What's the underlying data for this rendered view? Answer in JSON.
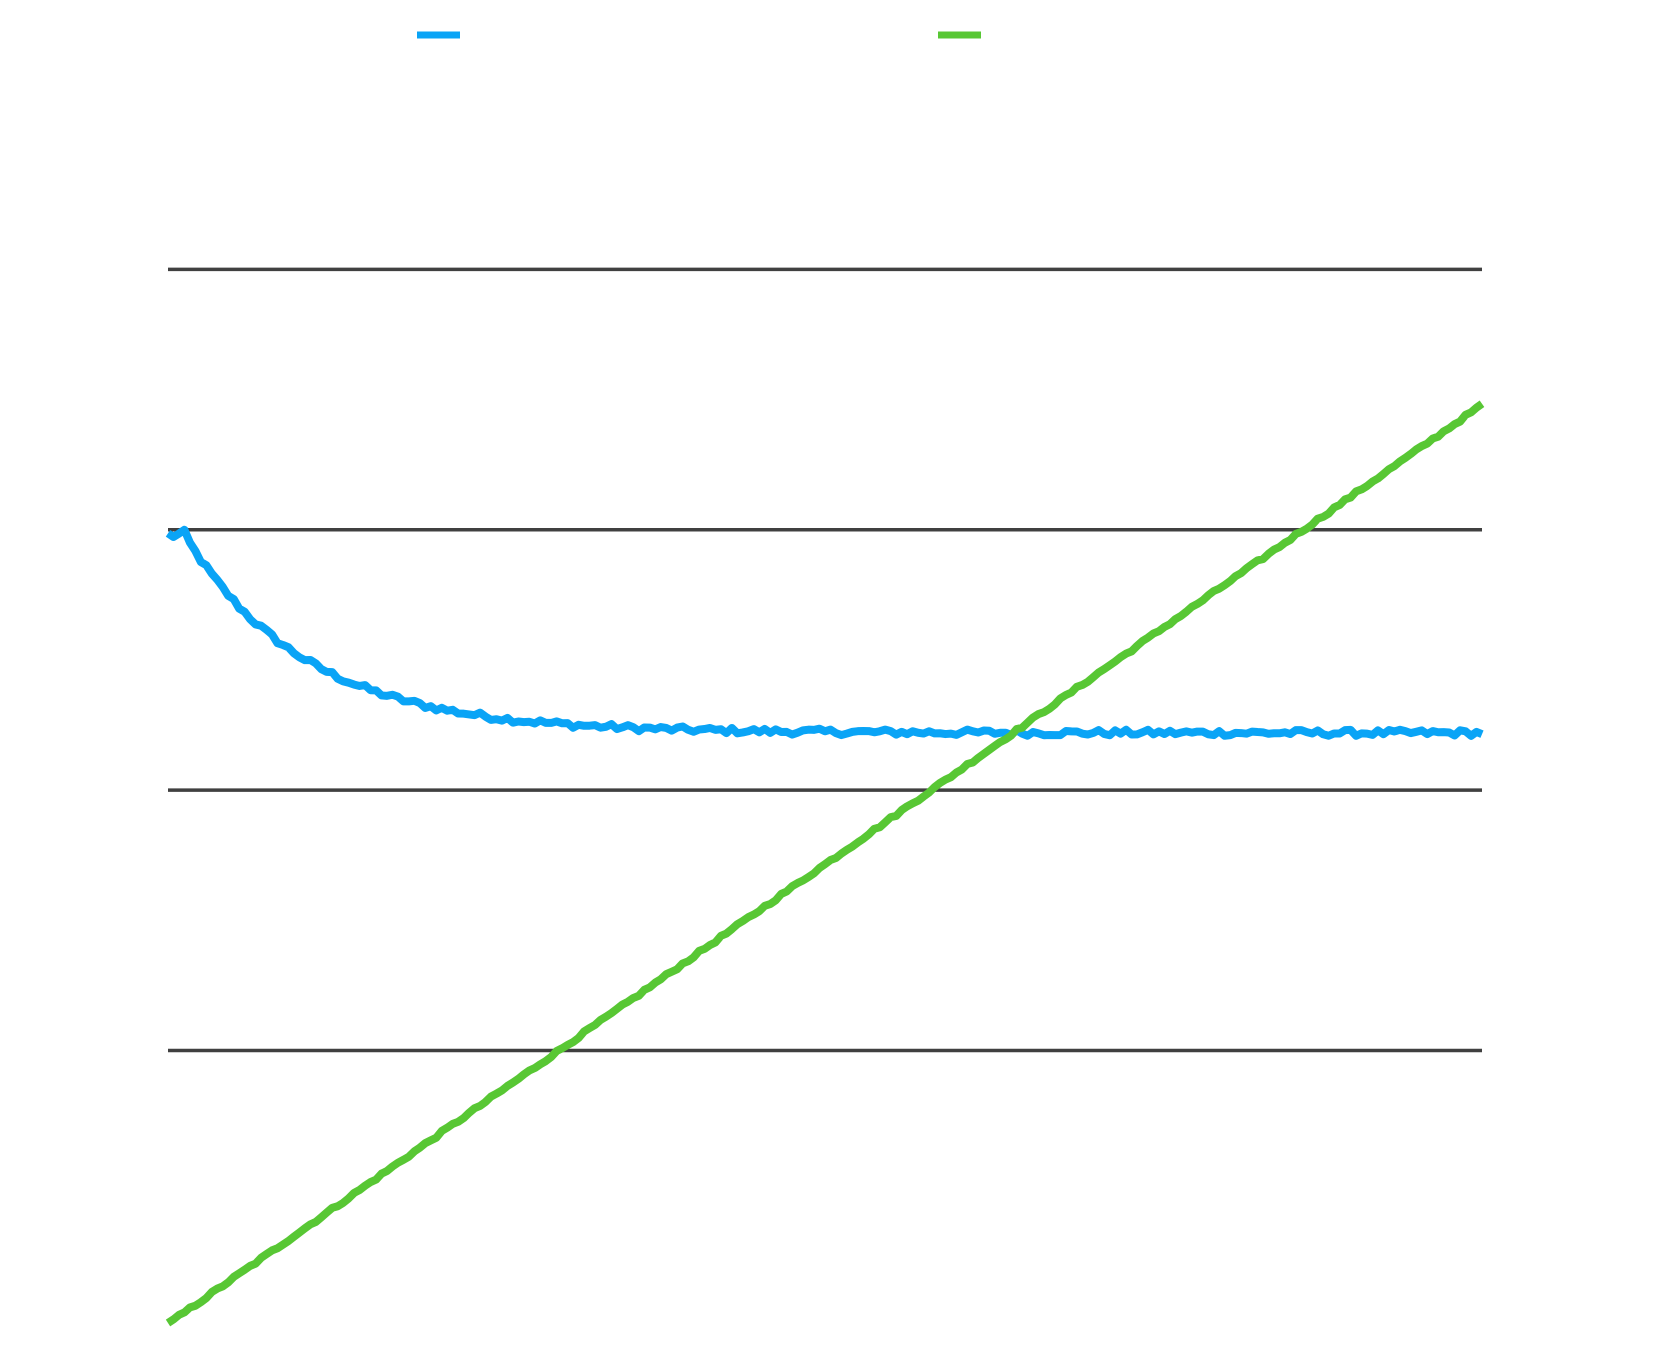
{
  "chart_data": {
    "type": "line",
    "title": "",
    "xlabel": "",
    "ylabel": "",
    "x_count": 241,
    "xlim": [
      0,
      240
    ],
    "ylim": [
      -1.6,
      3.4
    ],
    "y_gridlines": [
      -0.5,
      0.5,
      1.5,
      2.5
    ],
    "grid": true,
    "legend_position": "top",
    "series": [
      {
        "name": "",
        "color": "#0aa4f6",
        "shape": "rapid-decay-then-plateau",
        "start": 1.48,
        "plateau": 0.72,
        "decay_rate": 0.045,
        "noise": 0.012,
        "values": []
      },
      {
        "name": "",
        "color": "#58c734",
        "shape": "linear-increase",
        "start": -1.55,
        "end": 1.98,
        "noise": 0.006,
        "values": []
      }
    ]
  }
}
